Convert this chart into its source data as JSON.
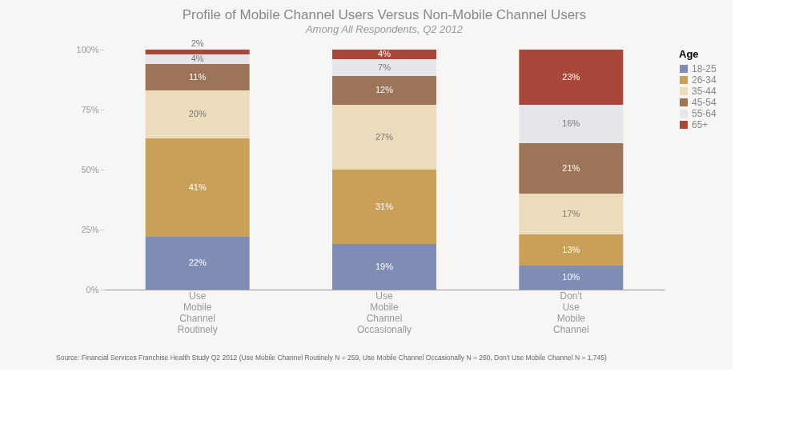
{
  "chart_data": {
    "type": "bar",
    "stacked": true,
    "title": "Profile of Mobile Channel Users Versus Non-Mobile Channel Users",
    "subtitle": "Among All Respondents, Q2 2012",
    "legend_title": "Age",
    "legend": "right",
    "grid": false,
    "categories": [
      "Use Mobile Channel Routinely",
      "Use Mobile Channel Occasionally",
      "Don't Use Mobile Channel"
    ],
    "ylim": [
      0,
      100
    ],
    "yticks": [
      {
        "value": 0,
        "label": "0%"
      },
      {
        "value": 25,
        "label": "25%"
      },
      {
        "value": 50,
        "label": "50%"
      },
      {
        "value": 75,
        "label": "75%"
      },
      {
        "value": 100,
        "label": "100%"
      }
    ],
    "series": [
      {
        "name": "18-25",
        "color": "#7f8db5",
        "values": [
          22,
          19,
          10
        ],
        "value_labels": [
          "22%",
          "19%",
          "10%"
        ]
      },
      {
        "name": "26-34",
        "color": "#c9a05a",
        "values": [
          41,
          31,
          13
        ],
        "value_labels": [
          "41%",
          "31%",
          "13%"
        ]
      },
      {
        "name": "35-44",
        "color": "#ecdcbc",
        "values": [
          20,
          27,
          17
        ],
        "value_labels": [
          "20%",
          "27%",
          "17%"
        ]
      },
      {
        "name": "45-54",
        "color": "#9c7457",
        "values": [
          11,
          12,
          21
        ],
        "value_labels": [
          "11%",
          "12%",
          "21%"
        ]
      },
      {
        "name": "55-64",
        "color": "#e6e6ea",
        "values": [
          4,
          7,
          16
        ],
        "value_labels": [
          "4%",
          "7%",
          "16%"
        ]
      },
      {
        "name": "65+",
        "color": "#a8483a",
        "values": [
          2,
          4,
          23
        ],
        "value_labels": [
          "2%",
          "4%",
          "23%"
        ]
      }
    ],
    "annotations": [
      "Source: Financial Services Franchise Health Study Q2 2012 (Use Mobile Channel Routinely N = 259, Use Mobile Channel Occasionally N = 260, Don't Use Mobile Channel N = 1,745)"
    ]
  }
}
